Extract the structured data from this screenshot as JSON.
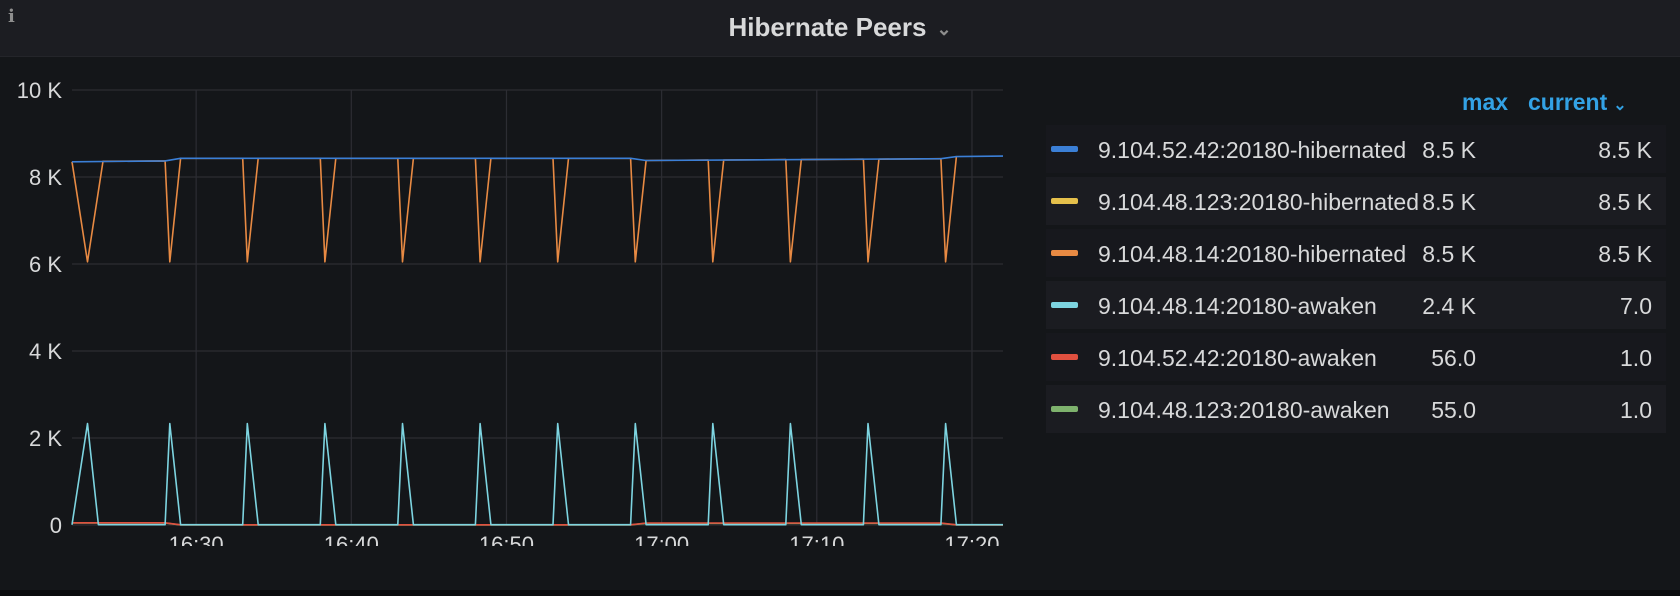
{
  "panel": {
    "title": "Hibernate Peers",
    "info_icon": "info-icon",
    "title_menu_icon": "chevron-down-icon"
  },
  "legend": {
    "max_header": "max",
    "current_header": "current",
    "sort_icon": "chevron-down-icon",
    "rows": [
      {
        "name": "9.104.52.42:20180-hibernated",
        "max": "8.5 K",
        "current": "8.5 K",
        "color": "#3b7fd6"
      },
      {
        "name": "9.104.48.123:20180-hibernated",
        "max": "8.5 K",
        "current": "8.5 K",
        "color": "#e5c04b"
      },
      {
        "name": "9.104.48.14:20180-hibernated",
        "max": "8.5 K",
        "current": "8.5 K",
        "color": "#e88a43"
      },
      {
        "name": "9.104.48.14:20180-awaken",
        "max": "2.4 K",
        "current": "7.0",
        "color": "#7dd4e0"
      },
      {
        "name": "9.104.52.42:20180-awaken",
        "max": "56.0",
        "current": "1.0",
        "color": "#e0503f"
      },
      {
        "name": "9.104.48.123:20180-awaken",
        "max": "55.0",
        "current": "1.0",
        "color": "#7eb26d"
      }
    ]
  },
  "chart_data": {
    "type": "line",
    "title": "Hibernate Peers",
    "xlabel": "",
    "ylabel": "",
    "x_range": [
      "16:22",
      "17:22"
    ],
    "xticks": [
      "16:30",
      "16:40",
      "16:50",
      "17:00",
      "17:10",
      "17:20"
    ],
    "yticks": [
      "0",
      "2 K",
      "4 K",
      "6 K",
      "8 K",
      "10 K"
    ],
    "ylim": [
      0,
      10000
    ],
    "grid": true,
    "legend_placement": "right",
    "series": [
      {
        "name": "9.104.52.42:20180-hibernated",
        "color": "#3b7fd6",
        "points": [
          [
            "16:22",
            8350
          ],
          [
            "16:28",
            8370
          ],
          [
            "16:29",
            8430
          ],
          [
            "16:58",
            8430
          ],
          [
            "16:59",
            8380
          ],
          [
            "17:18",
            8420
          ],
          [
            "17:19",
            8470
          ],
          [
            "17:22",
            8480
          ]
        ]
      },
      {
        "name": "9.104.48.14:20180-hibernated",
        "color": "#e88a43",
        "points": [
          [
            "16:22",
            8350
          ],
          [
            "16:23",
            6050
          ],
          [
            "16:24",
            8360
          ],
          [
            "16:28",
            8370
          ],
          [
            "16:28.3",
            6050
          ],
          [
            "16:29",
            8430
          ],
          [
            "16:33",
            8430
          ],
          [
            "16:33.3",
            6050
          ],
          [
            "16:34",
            8430
          ],
          [
            "16:38",
            8430
          ],
          [
            "16:38.3",
            6050
          ],
          [
            "16:39",
            8430
          ],
          [
            "16:43",
            8430
          ],
          [
            "16:43.3",
            6050
          ],
          [
            "16:44",
            8430
          ],
          [
            "16:48",
            8430
          ],
          [
            "16:48.3",
            6050
          ],
          [
            "16:49",
            8430
          ],
          [
            "16:53",
            8430
          ],
          [
            "16:53.3",
            6050
          ],
          [
            "16:54",
            8430
          ],
          [
            "16:58",
            8430
          ],
          [
            "16:58.3",
            6050
          ],
          [
            "16:59",
            8380
          ],
          [
            "17:03",
            8390
          ],
          [
            "17:03.3",
            6050
          ],
          [
            "17:04",
            8390
          ],
          [
            "17:08",
            8400
          ],
          [
            "17:08.3",
            6050
          ],
          [
            "17:09",
            8400
          ],
          [
            "17:13",
            8410
          ],
          [
            "17:13.3",
            6050
          ],
          [
            "17:14",
            8410
          ],
          [
            "17:18",
            8420
          ],
          [
            "17:18.3",
            6050
          ],
          [
            "17:19",
            8470
          ]
        ]
      },
      {
        "name": "9.104.48.14:20180-awaken",
        "color": "#7dd4e0",
        "points": [
          [
            "16:22",
            7
          ],
          [
            "16:23",
            2330
          ],
          [
            "16:23.7",
            7
          ],
          [
            "16:28",
            7
          ],
          [
            "16:28.3",
            2330
          ],
          [
            "16:29",
            7
          ],
          [
            "16:33",
            7
          ],
          [
            "16:33.3",
            2330
          ],
          [
            "16:34",
            7
          ],
          [
            "16:38",
            7
          ],
          [
            "16:38.3",
            2330
          ],
          [
            "16:39",
            7
          ],
          [
            "16:43",
            7
          ],
          [
            "16:43.3",
            2330
          ],
          [
            "16:44",
            7
          ],
          [
            "16:48",
            7
          ],
          [
            "16:48.3",
            2330
          ],
          [
            "16:49",
            7
          ],
          [
            "16:53",
            7
          ],
          [
            "16:53.3",
            2330
          ],
          [
            "16:54",
            7
          ],
          [
            "16:58",
            7
          ],
          [
            "16:58.3",
            2330
          ],
          [
            "16:59",
            7
          ],
          [
            "17:03",
            7
          ],
          [
            "17:03.3",
            2330
          ],
          [
            "17:04",
            7
          ],
          [
            "17:08",
            7
          ],
          [
            "17:08.3",
            2330
          ],
          [
            "17:09",
            7
          ],
          [
            "17:13",
            7
          ],
          [
            "17:13.3",
            2330
          ],
          [
            "17:14",
            7
          ],
          [
            "17:18",
            7
          ],
          [
            "17:18.3",
            2330
          ],
          [
            "17:19",
            7
          ],
          [
            "17:22",
            7
          ]
        ]
      },
      {
        "name": "9.104.52.42:20180-awaken",
        "color": "#e0503f",
        "points": [
          [
            "16:22",
            50
          ],
          [
            "16:28",
            50
          ],
          [
            "16:29",
            5
          ],
          [
            "16:58",
            5
          ],
          [
            "16:59",
            45
          ],
          [
            "17:18",
            45
          ],
          [
            "17:19",
            5
          ],
          [
            "17:22",
            1
          ]
        ]
      },
      {
        "name": "9.104.48.123:20180-awaken",
        "color": "#7eb26d",
        "points": [
          [
            "16:22",
            45
          ],
          [
            "16:28",
            45
          ],
          [
            "16:29",
            3
          ],
          [
            "16:58",
            3
          ],
          [
            "16:59",
            40
          ],
          [
            "17:18",
            40
          ],
          [
            "17:19",
            3
          ],
          [
            "17:22",
            1
          ]
        ]
      }
    ]
  }
}
